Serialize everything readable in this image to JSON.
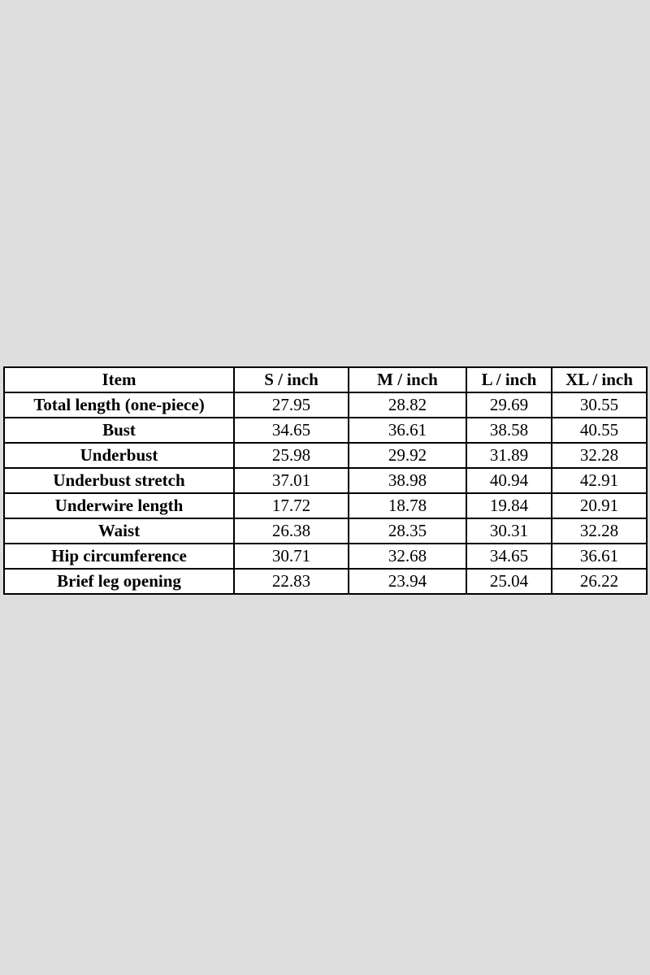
{
  "page": {
    "background_color": "#dedede",
    "cell_background_color": "#ffffff",
    "border_color": "#000000",
    "text_color": "#000000"
  },
  "chart_data": {
    "type": "table",
    "title": "",
    "columns": [
      "Item",
      "S / inch",
      "M / inch",
      "L / inch",
      "XL / inch"
    ],
    "rows": [
      [
        "Total length (one-piece)",
        "27.95",
        "28.82",
        "29.69",
        "30.55"
      ],
      [
        "Bust",
        "34.65",
        "36.61",
        "38.58",
        "40.55"
      ],
      [
        "Underbust",
        "25.98",
        "29.92",
        "31.89",
        "32.28"
      ],
      [
        "Underbust stretch",
        "37.01",
        "38.98",
        "40.94",
        "42.91"
      ],
      [
        "Underwire length",
        "17.72",
        "18.78",
        "19.84",
        "20.91"
      ],
      [
        "Waist",
        "26.38",
        "28.35",
        "30.31",
        "32.28"
      ],
      [
        "Hip circumference",
        "30.71",
        "32.68",
        "34.65",
        "36.61"
      ],
      [
        "Brief leg opening",
        "22.83",
        "23.94",
        "25.04",
        "26.22"
      ]
    ]
  }
}
